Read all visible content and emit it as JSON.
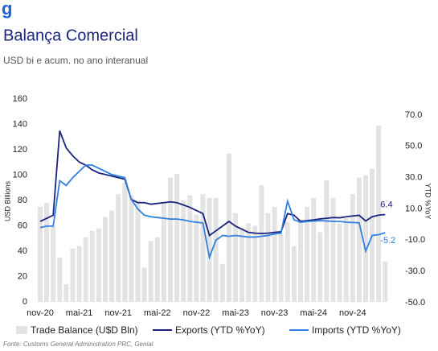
{
  "chart_data": {
    "type": "bar_line",
    "logo": "g",
    "title": "Balança Comercial",
    "subtitle": "USD bi e acum. no ano interanual",
    "ylabel": "USD Billions",
    "y2label": "YTD %YoY",
    "source": "Fonte: Customs General Administration PRC, Genial",
    "categories": [
      "nov-20",
      null,
      null,
      null,
      null,
      null,
      "mai-21",
      null,
      null,
      null,
      null,
      null,
      "nov-21",
      null,
      null,
      null,
      null,
      null,
      "mai-22",
      null,
      null,
      null,
      null,
      null,
      "nov-22",
      null,
      null,
      null,
      null,
      null,
      "mai-23",
      null,
      null,
      null,
      null,
      null,
      "nov-23",
      null,
      null,
      null,
      null,
      null,
      "mai-24",
      null,
      null,
      null,
      null,
      null,
      "nov-24",
      null,
      null,
      null,
      null,
      null
    ],
    "ylim": [
      0,
      160
    ],
    "yticks": [
      0,
      20,
      40,
      60,
      80,
      100,
      120,
      140,
      160
    ],
    "y2lim": [
      -50,
      70
    ],
    "y2ticks": [
      {
        "value": 70,
        "label": "70.0"
      },
      {
        "value": 50,
        "label": "50.0"
      },
      {
        "value": 30,
        "label": "30.0"
      },
      {
        "value": 10,
        "label": "10.0"
      },
      {
        "value": -10,
        "label": "-10.0"
      },
      {
        "value": -30,
        "label": "-30.0"
      },
      {
        "value": -50,
        "label": "-50.0"
      }
    ],
    "series": [
      {
        "name": "Trade Balance (U$D Bln)",
        "kind": "bar",
        "color": "#e3e3e3",
        "values": [
          75,
          78,
          60,
          35,
          14,
          42,
          44,
          51,
          56,
          58,
          67,
          72,
          85,
          94,
          84,
          80,
          27,
          48,
          51,
          78,
          98,
          101,
          80,
          84,
          69,
          85,
          82,
          82,
          30,
          117,
          70,
          58,
          62,
          60,
          92,
          70,
          75,
          54,
          63,
          44,
          65,
          75,
          82,
          55,
          96,
          82,
          62,
          66,
          85,
          98,
          100,
          105,
          139,
          32
        ]
      },
      {
        "name": "Exports (YTD %YoY)",
        "kind": "line",
        "axis": "y2",
        "color": "#1a237e",
        "values": [
          2,
          4,
          6,
          60,
          49,
          44,
          40,
          38,
          35,
          33,
          32,
          31,
          30,
          29,
          16,
          14,
          14,
          13,
          13.5,
          14,
          14.5,
          14,
          12.5,
          11,
          9,
          7,
          -7,
          -4,
          -1,
          2,
          -1,
          -3,
          -5,
          -5.5,
          -5.7,
          -5.5,
          -5,
          -4.6,
          7,
          6,
          2,
          2.5,
          3,
          3.6,
          4,
          4.5,
          4.3,
          5,
          5.5,
          5.9,
          2.3,
          5,
          6,
          6.4
        ]
      },
      {
        "name": "Imports (YTD %YoY)",
        "kind": "line",
        "axis": "y2",
        "color": "#2f80e0",
        "values": [
          -2,
          -1,
          -1,
          28,
          25,
          30,
          34,
          38,
          38,
          36,
          34,
          32,
          31,
          30,
          16,
          10,
          6,
          5,
          4.5,
          4,
          3.5,
          3.5,
          3,
          2,
          1.5,
          1,
          -21,
          -10,
          -7,
          -7.5,
          -7,
          -7.5,
          -8,
          -8,
          -7.5,
          -7,
          -6,
          -5.5,
          15,
          3,
          1.5,
          2,
          2.2,
          2.5,
          2.3,
          2,
          2,
          1.5,
          1.3,
          1.1,
          -17,
          -7,
          -6.5,
          -5.2
        ]
      }
    ]
  }
}
